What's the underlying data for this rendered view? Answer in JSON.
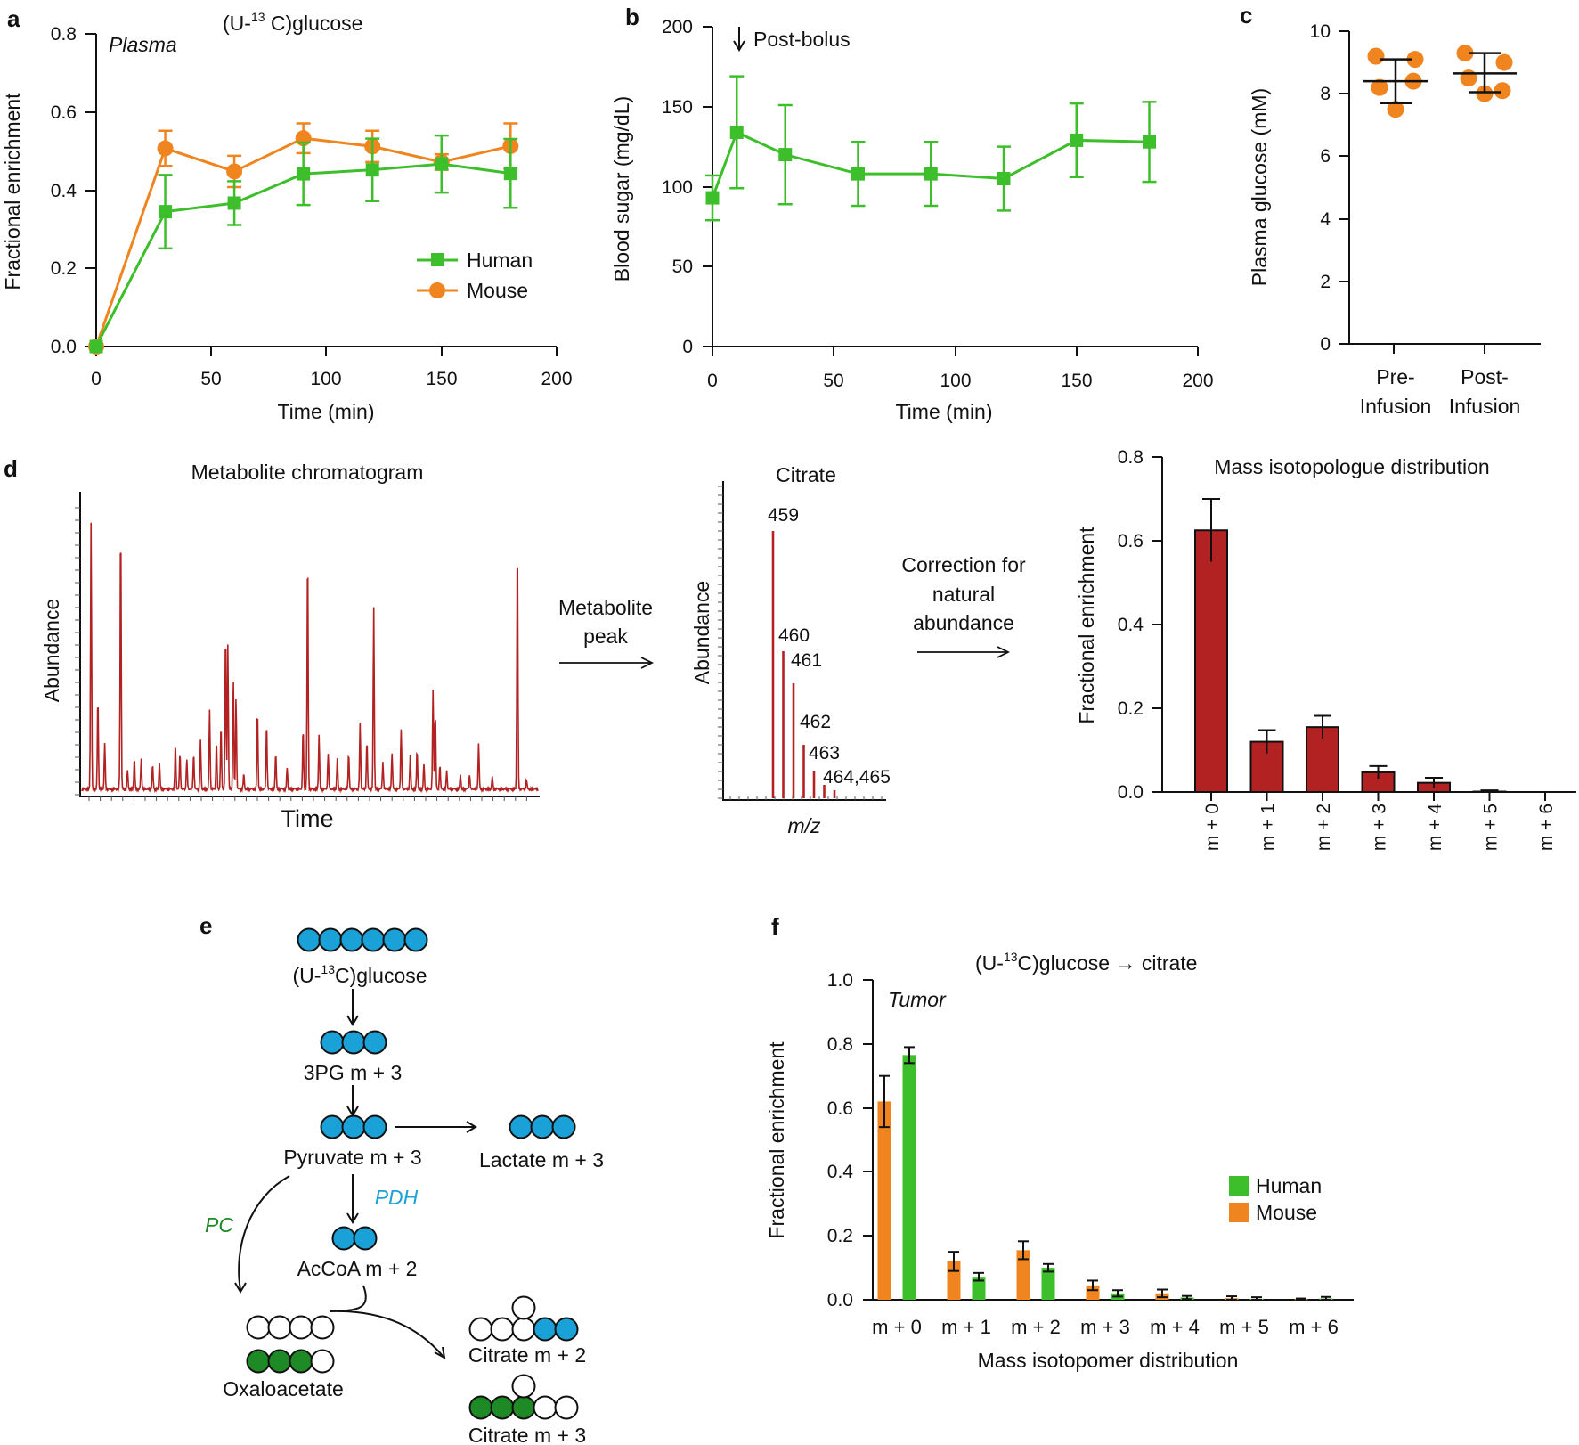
{
  "panels": {
    "a": "a",
    "b": "b",
    "c": "c",
    "d": "d",
    "e": "e",
    "f": "f"
  },
  "colors": {
    "human": "#3cbf2a",
    "mouse": "#f0841e",
    "red": "#b22222",
    "blue": "#1aa2d8",
    "dgreen": "#1e8a25",
    "black": "#111111"
  },
  "chart_data": [
    {
      "id": "a",
      "type": "line",
      "title": "(U-13C)glucose",
      "title_pre": "(U-",
      "title_sup": "13",
      "title_post": " C)glucose",
      "annotation": "Plasma",
      "xlabel": "Time (min)",
      "ylabel": "Fractional enrichment",
      "xlim": [
        0,
        200
      ],
      "ylim": [
        0,
        0.8
      ],
      "xticks": [
        "0",
        "50",
        "100",
        "150",
        "200"
      ],
      "yticks": [
        "0.0",
        "0.2",
        "0.4",
        "0.6",
        "0.8"
      ],
      "legend": [
        "Human",
        "Mouse"
      ],
      "series": [
        {
          "name": "Human",
          "marker": "square",
          "x": [
            0,
            30,
            60,
            90,
            120,
            150,
            180
          ],
          "y": [
            0.0,
            0.345,
            0.367,
            0.442,
            0.452,
            0.467,
            0.443
          ],
          "err": [
            0,
            0.094,
            0.056,
            0.08,
            0.08,
            0.073,
            0.088
          ]
        },
        {
          "name": "Mouse",
          "marker": "circle",
          "x": [
            0,
            30,
            60,
            90,
            120,
            150,
            180
          ],
          "y": [
            0.0,
            0.507,
            0.448,
            0.533,
            0.512,
            0.472,
            0.513
          ],
          "err": [
            0,
            0.045,
            0.04,
            0.038,
            0.04,
            0.02,
            0.058
          ]
        }
      ]
    },
    {
      "id": "b",
      "type": "line",
      "annotation": "Post-bolus",
      "xlabel": "Time (min)",
      "ylabel": "Blood sugar (mg/dL)",
      "xlim": [
        0,
        200
      ],
      "ylim": [
        0,
        200
      ],
      "xticks": [
        "0",
        "50",
        "100",
        "150",
        "200"
      ],
      "yticks": [
        "0",
        "50",
        "100",
        "150",
        "200"
      ],
      "series": [
        {
          "name": "Blood sugar",
          "marker": "square",
          "x": [
            0,
            10,
            30,
            60,
            90,
            120,
            150,
            180
          ],
          "y": [
            93,
            134,
            120,
            108,
            108,
            105,
            129,
            128
          ],
          "err": [
            14,
            35,
            31,
            20,
            20,
            20,
            23,
            25
          ]
        }
      ]
    },
    {
      "id": "c",
      "type": "scatter",
      "ylabel": "Plasma glucose (mM)",
      "ylim": [
        0,
        10
      ],
      "yticks": [
        "0",
        "2",
        "4",
        "6",
        "8",
        "10"
      ],
      "groups": [
        {
          "name": "Pre-Infusion",
          "name_l1": "Pre-",
          "name_l2": "Infusion",
          "points": [
            9.2,
            8.4,
            8.2,
            7.5,
            9.1
          ],
          "mean": 8.4,
          "sd_low": 7.7,
          "sd_high": 9.1
        },
        {
          "name": "Post-Infusion",
          "name_l1": "Post-",
          "name_l2": "Infusion",
          "points": [
            9.3,
            8.1,
            8.5,
            8.0,
            9.0
          ],
          "mean": 8.65,
          "sd_low": 8.05,
          "sd_high": 9.3
        }
      ]
    },
    {
      "id": "d1",
      "type": "line",
      "title": "Metabolite chromatogram",
      "xlabel": "Time",
      "ylabel": "Abundance",
      "arrow_label_l1": "Metabolite",
      "arrow_label_l2": "peak",
      "peaks": [
        {
          "t": 0.02,
          "h": 0.88
        },
        {
          "t": 0.035,
          "h": 0.3
        },
        {
          "t": 0.05,
          "h": 0.15
        },
        {
          "t": 0.085,
          "h": 0.88
        },
        {
          "t": 0.1,
          "h": 0.06
        },
        {
          "t": 0.115,
          "h": 0.1
        },
        {
          "t": 0.13,
          "h": 0.1
        },
        {
          "t": 0.155,
          "h": 0.08
        },
        {
          "t": 0.17,
          "h": 0.09
        },
        {
          "t": 0.205,
          "h": 0.15
        },
        {
          "t": 0.215,
          "h": 0.12
        },
        {
          "t": 0.23,
          "h": 0.1
        },
        {
          "t": 0.245,
          "h": 0.12
        },
        {
          "t": 0.26,
          "h": 0.16
        },
        {
          "t": 0.28,
          "h": 0.26
        },
        {
          "t": 0.295,
          "h": 0.16
        },
        {
          "t": 0.305,
          "h": 0.21
        },
        {
          "t": 0.315,
          "h": 0.52
        },
        {
          "t": 0.32,
          "h": 0.48
        },
        {
          "t": 0.332,
          "h": 0.36
        },
        {
          "t": 0.338,
          "h": 0.3
        },
        {
          "t": 0.355,
          "h": 0.05
        },
        {
          "t": 0.385,
          "h": 0.26
        },
        {
          "t": 0.405,
          "h": 0.22
        },
        {
          "t": 0.425,
          "h": 0.12
        },
        {
          "t": 0.45,
          "h": 0.07
        },
        {
          "t": 0.485,
          "h": 0.2
        },
        {
          "t": 0.495,
          "h": 0.78
        },
        {
          "t": 0.52,
          "h": 0.18
        },
        {
          "t": 0.54,
          "h": 0.12
        },
        {
          "t": 0.56,
          "h": 0.1
        },
        {
          "t": 0.585,
          "h": 0.12
        },
        {
          "t": 0.61,
          "h": 0.22
        },
        {
          "t": 0.625,
          "h": 0.16
        },
        {
          "t": 0.64,
          "h": 0.6
        },
        {
          "t": 0.66,
          "h": 0.09
        },
        {
          "t": 0.68,
          "h": 0.12
        },
        {
          "t": 0.7,
          "h": 0.2
        },
        {
          "t": 0.72,
          "h": 0.11
        },
        {
          "t": 0.735,
          "h": 0.13
        },
        {
          "t": 0.75,
          "h": 0.08
        },
        {
          "t": 0.77,
          "h": 0.33
        },
        {
          "t": 0.775,
          "h": 0.25
        },
        {
          "t": 0.785,
          "h": 0.08
        },
        {
          "t": 0.8,
          "h": 0.06
        },
        {
          "t": 0.83,
          "h": 0.05
        },
        {
          "t": 0.85,
          "h": 0.05
        },
        {
          "t": 0.87,
          "h": 0.15
        },
        {
          "t": 0.9,
          "h": 0.04
        },
        {
          "t": 0.955,
          "h": 0.82
        },
        {
          "t": 0.975,
          "h": 0.03
        }
      ]
    },
    {
      "id": "d2",
      "type": "bar",
      "title": "Citrate",
      "xlabel": "m/z",
      "ylabel": "Abundance",
      "arrow_label_l1": "Correction for",
      "arrow_label_l2": "natural",
      "arrow_label_l3": "abundance",
      "categories": [
        "459",
        "460",
        "461",
        "462",
        "463",
        "464",
        "465"
      ],
      "peak_labels": [
        "459",
        "460",
        "461",
        "462",
        "463",
        "464,465"
      ],
      "values": [
        1.0,
        0.55,
        0.43,
        0.2,
        0.1,
        0.05,
        0.03
      ]
    },
    {
      "id": "d3",
      "type": "bar",
      "title": "Mass isotopologue distribution",
      "ylabel": "Fractional enrichment",
      "categories": [
        "m + 0",
        "m + 1",
        "m + 2",
        "m + 3",
        "m + 4",
        "m + 5",
        "m + 6"
      ],
      "values": [
        0.625,
        0.12,
        0.155,
        0.047,
        0.022,
        0.001,
        0.0
      ],
      "err": [
        0.075,
        0.028,
        0.027,
        0.015,
        0.012,
        0.003,
        0.0
      ],
      "ylim": [
        0,
        0.8
      ],
      "yticks": [
        "0.0",
        "0.2",
        "0.4",
        "0.6",
        "0.8"
      ]
    },
    {
      "id": "f",
      "type": "bar",
      "title": "(U-13C)glucose → citrate",
      "title_pre": "(U-",
      "title_sup": "13",
      "title_post": "C)glucose → citrate",
      "annotation": "Tumor",
      "xlabel": "Mass isotopomer distribution",
      "ylabel": "Fractional enrichment",
      "categories": [
        "m + 0",
        "m + 1",
        "m + 2",
        "m + 3",
        "m + 4",
        "m + 5",
        "m + 6"
      ],
      "ylim": [
        0,
        1.0
      ],
      "yticks": [
        "0.0",
        "0.2",
        "0.4",
        "0.6",
        "0.8",
        "1.0"
      ],
      "legend": [
        "Human",
        "Mouse"
      ],
      "series": [
        {
          "name": "Mouse",
          "values": [
            0.62,
            0.12,
            0.155,
            0.045,
            0.02,
            0.005,
            0.002
          ],
          "err": [
            0.08,
            0.03,
            0.028,
            0.015,
            0.012,
            0.006,
            0.002
          ]
        },
        {
          "name": "Human",
          "values": [
            0.765,
            0.072,
            0.1,
            0.02,
            0.007,
            0.003,
            0.004
          ],
          "err": [
            0.025,
            0.012,
            0.012,
            0.01,
            0.005,
            0.005,
            0.005
          ]
        }
      ]
    }
  ],
  "pathway": {
    "glucose_pre": "(U-",
    "glucose_sup": "13",
    "glucose_post": "C)glucose",
    "pg": "3PG m + 3",
    "pyruvate": "Pyruvate m + 3",
    "lactate": "Lactate m + 3",
    "pdh": "PDH",
    "pc": "PC",
    "accoa": "AcCoA m + 2",
    "oaa": "Oxaloacetate",
    "cit2": "Citrate m + 2",
    "cit3": "Citrate m + 3"
  }
}
